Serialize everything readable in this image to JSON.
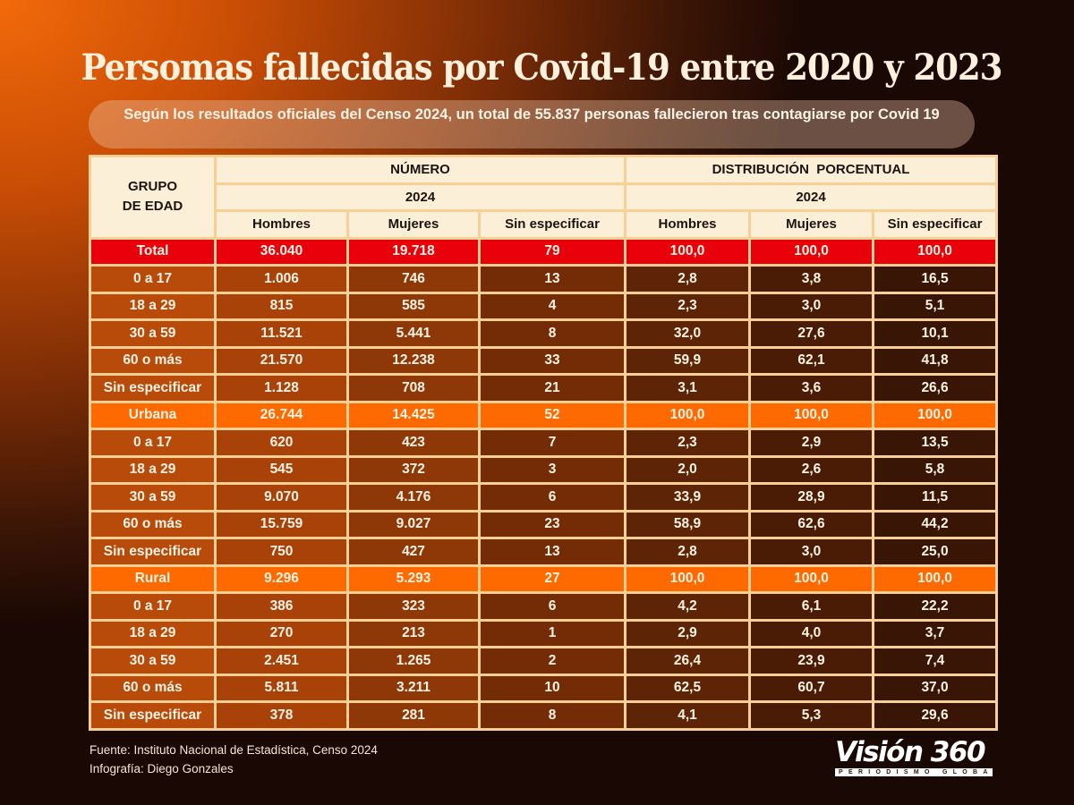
{
  "title": "Persomas fallecidas por Covid-19 entre 2020 y 2023",
  "subtitle": "Según los resultados oficiales del Censo 2024, un total de 55.837 personas fallecieron tras contagiarse por Covid 19",
  "colors": {
    "total_row": "#e8000a",
    "section_row": "#ff6a00",
    "header_bg": "#fcefd8",
    "border": "#f8cf95"
  },
  "footer": {
    "source": "Fuente: Instituto Nacional de Estadística, Censo 2024",
    "credit": "Infografía: Diego Gonzales"
  },
  "logo": {
    "name": "Visión 360",
    "tagline": "PERIODISMO GLOBAL"
  },
  "chart_data": {
    "type": "table",
    "title": "Persomas fallecidas por Covid-19 entre 2020 y 2023",
    "header": {
      "group_label": "GRUPO DE EDAD",
      "group_label_lines": [
        "GRUPO",
        "DE EDAD"
      ],
      "numero": "NÚMERO",
      "distribucion": "DISTRIBUCIÓN  PORCENTUAL",
      "year_numero": "2024",
      "year_distribucion": "2024",
      "columns": [
        "Hombres",
        "Mujeres",
        "Sin especificar",
        "Hombres",
        "Mujeres",
        "Sin especificar"
      ]
    },
    "rows": [
      {
        "kind": "total",
        "label": "Total",
        "values": [
          "36.040",
          "19.718",
          "79",
          "100,0",
          "100,0",
          "100,0"
        ]
      },
      {
        "kind": "body",
        "label": "0 a 17",
        "values": [
          "1.006",
          "746",
          "13",
          "2,8",
          "3,8",
          "16,5"
        ]
      },
      {
        "kind": "body",
        "label": "18 a 29",
        "values": [
          "815",
          "585",
          "4",
          "2,3",
          "3,0",
          "5,1"
        ]
      },
      {
        "kind": "body",
        "label": "30 a 59",
        "values": [
          "11.521",
          "5.441",
          "8",
          "32,0",
          "27,6",
          "10,1"
        ]
      },
      {
        "kind": "body",
        "label": "60 o más",
        "values": [
          "21.570",
          "12.238",
          "33",
          "59,9",
          "62,1",
          "41,8"
        ]
      },
      {
        "kind": "body",
        "label": "Sin especificar",
        "values": [
          "1.128",
          "708",
          "21",
          "3,1",
          "3,6",
          "26,6"
        ]
      },
      {
        "kind": "section",
        "label": "Urbana",
        "values": [
          "26.744",
          "14.425",
          "52",
          "100,0",
          "100,0",
          "100,0"
        ]
      },
      {
        "kind": "body",
        "label": "0 a 17",
        "values": [
          "620",
          "423",
          "7",
          "2,3",
          "2,9",
          "13,5"
        ]
      },
      {
        "kind": "body",
        "label": "18 a 29",
        "values": [
          "545",
          "372",
          "3",
          "2,0",
          "2,6",
          "5,8"
        ]
      },
      {
        "kind": "body",
        "label": "30 a 59",
        "values": [
          "9.070",
          "4.176",
          "6",
          "33,9",
          "28,9",
          "11,5"
        ]
      },
      {
        "kind": "body",
        "label": "60 o más",
        "values": [
          "15.759",
          "9.027",
          "23",
          "58,9",
          "62,6",
          "44,2"
        ]
      },
      {
        "kind": "body",
        "label": "Sin especificar",
        "values": [
          "750",
          "427",
          "13",
          "2,8",
          "3,0",
          "25,0"
        ]
      },
      {
        "kind": "section",
        "label": "Rural",
        "values": [
          "9.296",
          "5.293",
          "27",
          "100,0",
          "100,0",
          "100,0"
        ]
      },
      {
        "kind": "body",
        "label": "0 a 17",
        "values": [
          "386",
          "323",
          "6",
          "4,2",
          "6,1",
          "22,2"
        ]
      },
      {
        "kind": "body",
        "label": "18 a 29",
        "values": [
          "270",
          "213",
          "1",
          "2,9",
          "4,0",
          "3,7"
        ]
      },
      {
        "kind": "body",
        "label": "30 a 59",
        "values": [
          "2.451",
          "1.265",
          "2",
          "26,4",
          "23,9",
          "7,4"
        ]
      },
      {
        "kind": "body",
        "label": "60 o más",
        "values": [
          "5.811",
          "3.211",
          "10",
          "62,5",
          "60,7",
          "37,0"
        ]
      },
      {
        "kind": "body",
        "label": "Sin especificar",
        "values": [
          "378",
          "281",
          "8",
          "4,1",
          "5,3",
          "29,6"
        ]
      }
    ]
  }
}
